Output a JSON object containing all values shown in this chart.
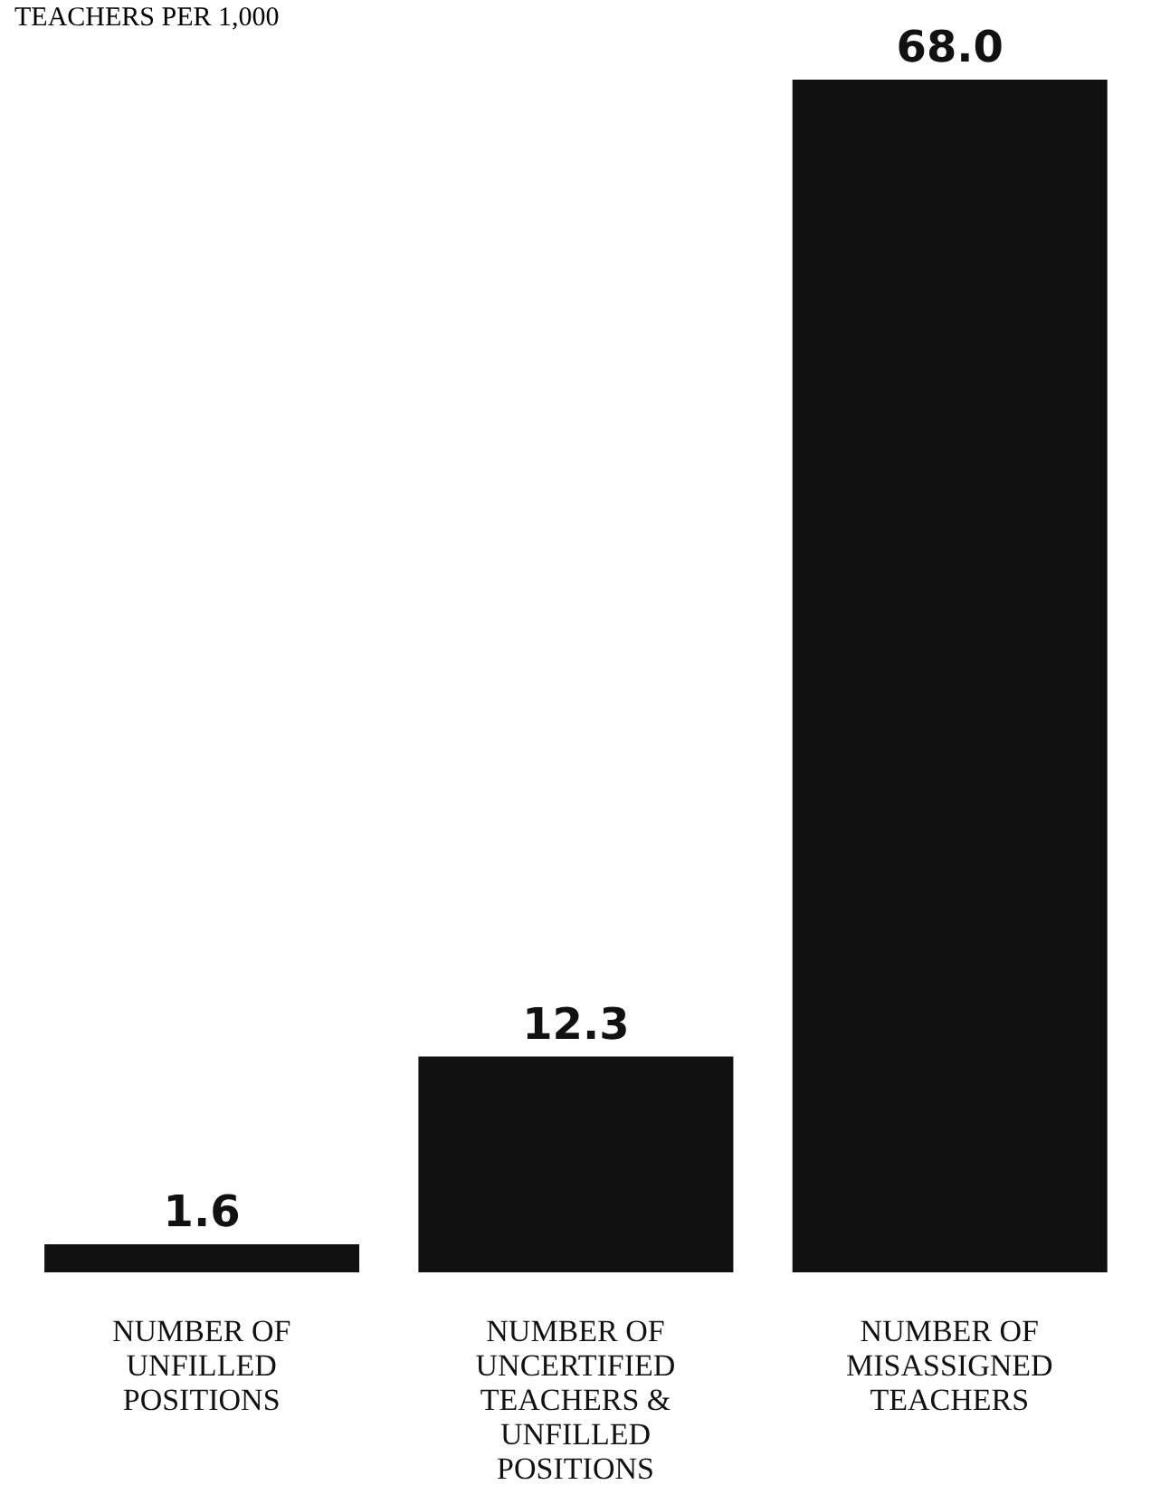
{
  "chart_data": {
    "type": "bar",
    "title": "TEACHERS PER 1,000",
    "categories": [
      "NUMBER OF UNFILLED POSITIONS",
      "NUMBER OF UNCERTIFIED TEACHERS & UNFILLED POSITIONS",
      "NUMBER OF MISASSIGNED TEACHERS"
    ],
    "values": [
      1.6,
      12.3,
      68
    ],
    "value_labels": [
      "1.6",
      "12.3",
      "68.0"
    ],
    "color": "#111111",
    "ylim": [
      0,
      68
    ],
    "tick_labels": "x"
  }
}
